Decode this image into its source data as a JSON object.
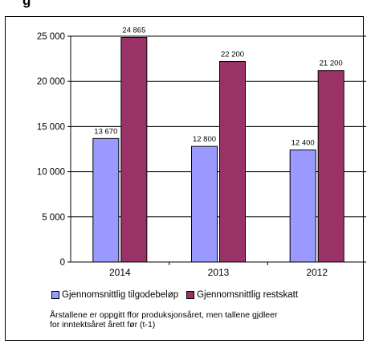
{
  "heading_fragment": "g",
  "chart_data": {
    "type": "bar",
    "categories": [
      "2014",
      "2013",
      "2012"
    ],
    "series": [
      {
        "name": "Gjennomsnittlig tilgodebeløp",
        "values": [
          13670,
          12800,
          12400
        ],
        "labels": [
          "13 670",
          "12 800",
          "12 400"
        ],
        "color": "#9999ff"
      },
      {
        "name": "Gjennomsnittlig restskatt",
        "values": [
          24865,
          22200,
          21200
        ],
        "labels": [
          "24 865",
          "22 200",
          "21 200"
        ],
        "color": "#993366"
      }
    ],
    "ylim": [
      0,
      25000
    ],
    "yticks": [
      0,
      5000,
      10000,
      15000,
      20000,
      25000
    ],
    "ytick_labels": [
      "0",
      "5 000",
      "10 000",
      "15 000",
      "20 000",
      "25 000"
    ],
    "grid": true,
    "legend_position": "bottom"
  },
  "footnote": {
    "line1": "Årstallene er oppgitt ffor produksjonsåret,  men tallene gjdleer",
    "line2": "for inntektsåret  årett før (t-1)"
  }
}
